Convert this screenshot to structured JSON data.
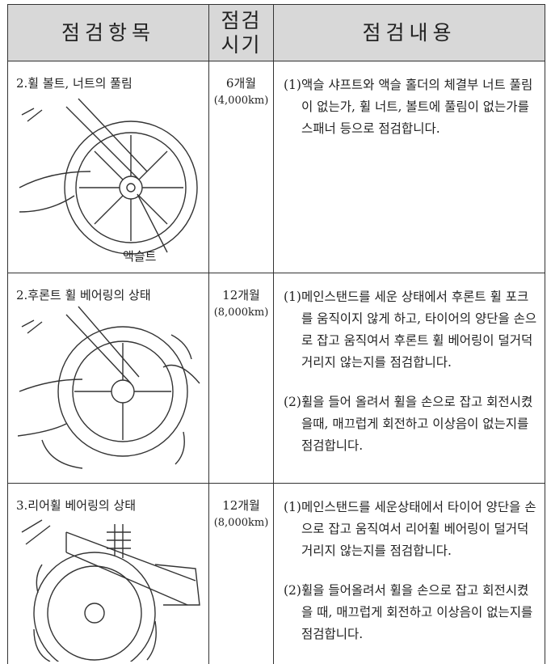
{
  "header": {
    "item": "점검항목",
    "period": [
      "점검",
      "시기"
    ],
    "content": "점검내용"
  },
  "rows": [
    {
      "item": "2.휠 볼트,  너트의 풀림",
      "period": "6개월",
      "period_km": "(4,000km)",
      "contents": [
        "(1)액슬 샤프트와 액슬 홀더의 체결부 너트 풀림이 없는가, 휠 너트, 볼트에 풀림이 없는가를 스패너 등으로 점검합니다."
      ],
      "label": "액슬트"
    },
    {
      "item": "2.후론트 휠 베어링의 상태",
      "period": "12개월",
      "period_km": "(8,000km)",
      "contents": [
        "(1)메인스탠드를 세운 상태에서 후론트 휠 포크를 움직이지  않게 하고, 타이어의 양단을 손으로 잡고 움직여서 후론트 휠 베어링이 덜거덕거리지  않는지를 점검합니다.",
        "(2)휠을 들어 올려서 휠을 손으로 잡고 회전시켰을때, 매끄럽게 회전하고 이상음이 없는지를 점검합니다."
      ]
    },
    {
      "item": "3.리어휠 베어링의 상태",
      "period": "12개월",
      "period_km": "(8,000km)",
      "contents": [
        "(1)메인스탠드를 세운상태에서 타이어 양단을 손으로 잡고 움직여서 리어휠 베어링이 덜거덕거리지  않는지를 점검합니다.",
        "(2)휠을 들어올려서 휠을 손으로 잡고 회전시켰을 때, 매끄럽게 회전하고 이상음이 없는지를 점검합니다."
      ]
    }
  ]
}
